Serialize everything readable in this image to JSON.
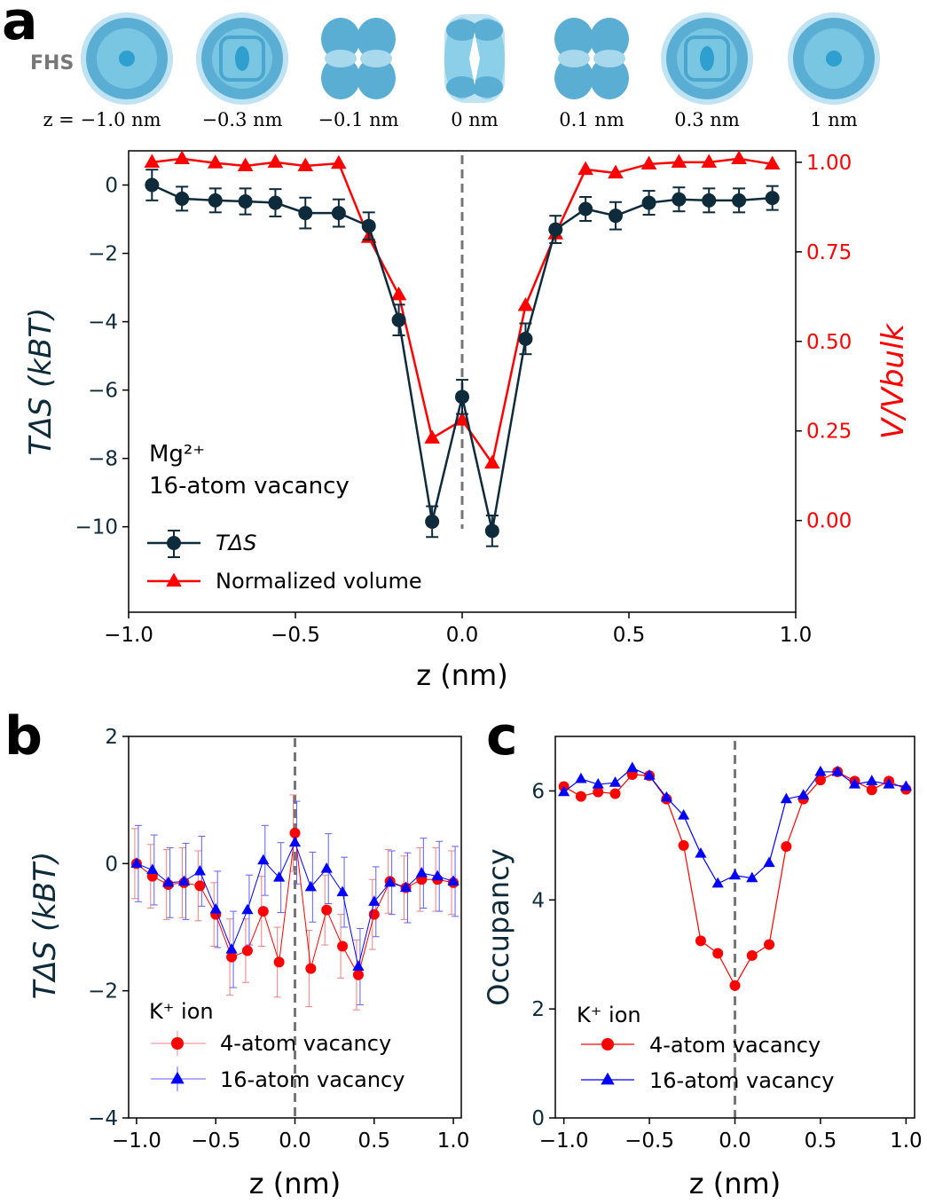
{
  "panel_letters": {
    "a": "a",
    "b": "b",
    "c": "c"
  },
  "fhs_label": "FHS",
  "snapshot_labels": [
    "z = −1.0 nm",
    "−0.3 nm",
    "−0.1 nm",
    "0 nm",
    "0.1 nm",
    "0.3 nm",
    "1 nm"
  ],
  "colors": {
    "dark": "#0d2b3a",
    "red": "#ff0000",
    "blue": "#0000ff",
    "sphere": "#5aaed3"
  },
  "chart_data": [
    {
      "id": "a",
      "type": "line",
      "xlabel": "z (nm)",
      "ylabel": "TΔS (kBT)",
      "ylabel2": "V/Vbulk",
      "xlim": [
        -1.0,
        1.0
      ],
      "ylim": [
        -12.5,
        1.0
      ],
      "ylim2": [
        -0.256,
        1.032
      ],
      "xticks": [
        "−1.0",
        "−0.5",
        "0.0",
        "0.5",
        "1.0"
      ],
      "xtick_values": [
        -1.0,
        -0.5,
        0.0,
        0.5,
        1.0
      ],
      "yticks": [
        "0",
        "−2",
        "−4",
        "−6",
        "−8",
        "−10"
      ],
      "ytick_values": [
        0,
        -2,
        -4,
        -6,
        -8,
        -10
      ],
      "yticks2": [
        "1.00",
        "0.75",
        "0.50",
        "0.25",
        "0.00"
      ],
      "ytick2_values": [
        1.0,
        0.75,
        0.5,
        0.25,
        0.0
      ],
      "annotation": [
        "Mg²⁺",
        "16-atom vacancy"
      ],
      "series": [
        {
          "name": "TΔS",
          "axis": "left",
          "x": [
            -0.93,
            -0.84,
            -0.74,
            -0.65,
            -0.56,
            -0.47,
            -0.37,
            -0.28,
            -0.19,
            -0.09,
            0.0,
            0.09,
            0.19,
            0.28,
            0.37,
            0.46,
            0.56,
            0.65,
            0.74,
            0.83,
            0.93
          ],
          "y": [
            0.0,
            -0.4,
            -0.45,
            -0.48,
            -0.52,
            -0.82,
            -0.82,
            -1.2,
            -3.95,
            -9.85,
            -6.2,
            -10.12,
            -4.5,
            -1.3,
            -0.7,
            -0.9,
            -0.52,
            -0.42,
            -0.45,
            -0.45,
            -0.38
          ],
          "err": [
            0.45,
            0.35,
            0.35,
            0.38,
            0.4,
            0.45,
            0.4,
            0.4,
            0.45,
            0.45,
            0.5,
            0.45,
            0.45,
            0.4,
            0.35,
            0.4,
            0.35,
            0.35,
            0.35,
            0.35,
            0.35
          ]
        },
        {
          "name": "Normalized volume",
          "axis": "right",
          "x": [
            -0.93,
            -0.84,
            -0.74,
            -0.65,
            -0.56,
            -0.47,
            -0.37,
            -0.28,
            -0.19,
            -0.09,
            0.0,
            0.09,
            0.19,
            0.28,
            0.37,
            0.46,
            0.56,
            0.65,
            0.74,
            0.83,
            0.93
          ],
          "y": [
            1.0,
            1.01,
            0.998,
            0.99,
            1.0,
            0.99,
            0.997,
            0.79,
            0.63,
            0.23,
            0.28,
            0.16,
            0.6,
            0.8,
            0.98,
            0.97,
            0.995,
            1.0,
            1.0,
            1.01,
            0.995
          ]
        }
      ]
    },
    {
      "id": "b",
      "type": "line",
      "xlabel": "z (nm)",
      "ylabel": "TΔS (kBT)",
      "xlim": [
        -1.05,
        1.05
      ],
      "ylim": [
        -4.0,
        2.0
      ],
      "xticks": [
        "−1.0",
        "−0.5",
        "0.0",
        "0.5",
        "1.0"
      ],
      "xtick_values": [
        -1.0,
        -0.5,
        0.0,
        0.5,
        1.0
      ],
      "yticks": [
        "2",
        "0",
        "−2",
        "−4"
      ],
      "ytick_values": [
        2,
        0,
        -2,
        -4
      ],
      "legend_title": "K⁺ ion",
      "series": [
        {
          "name": "4-atom vacancy",
          "x": [
            -1.0,
            -0.9,
            -0.8,
            -0.7,
            -0.6,
            -0.5,
            -0.4,
            -0.3,
            -0.2,
            -0.1,
            0.0,
            0.1,
            0.2,
            0.3,
            0.4,
            0.5,
            0.6,
            0.7,
            0.8,
            0.9,
            1.0
          ],
          "y": [
            0.0,
            -0.2,
            -0.33,
            -0.3,
            -0.35,
            -0.8,
            -1.47,
            -1.37,
            -0.75,
            -1.55,
            0.48,
            -1.65,
            -0.73,
            -1.3,
            -1.75,
            -0.8,
            -0.28,
            -0.38,
            -0.25,
            -0.25,
            -0.3
          ],
          "err": [
            0.55,
            0.5,
            0.55,
            0.55,
            0.55,
            0.5,
            0.6,
            0.5,
            0.55,
            0.55,
            0.6,
            0.6,
            0.55,
            0.5,
            0.55,
            0.55,
            0.5,
            0.5,
            0.5,
            0.5,
            0.5
          ]
        },
        {
          "name": "16-atom vacancy",
          "x": [
            -1.0,
            -0.9,
            -0.8,
            -0.7,
            -0.6,
            -0.5,
            -0.4,
            -0.3,
            -0.2,
            -0.1,
            0.0,
            0.1,
            0.2,
            0.3,
            0.4,
            0.5,
            0.6,
            0.7,
            0.8,
            0.9,
            1.0
          ],
          "y": [
            0.0,
            -0.1,
            -0.3,
            -0.28,
            -0.12,
            -0.72,
            -1.35,
            -0.73,
            0.05,
            -0.22,
            0.33,
            -0.37,
            -0.08,
            -0.45,
            -1.62,
            -0.6,
            -0.3,
            -0.38,
            -0.15,
            -0.2,
            -0.28
          ],
          "err": [
            0.6,
            0.55,
            0.55,
            0.6,
            0.55,
            0.6,
            0.6,
            0.55,
            0.55,
            0.55,
            0.65,
            0.55,
            0.55,
            0.55,
            0.6,
            0.55,
            0.5,
            0.55,
            0.55,
            0.55,
            0.55
          ]
        }
      ]
    },
    {
      "id": "c",
      "type": "line",
      "xlabel": "z (nm)",
      "ylabel": "Occupancy",
      "xlim": [
        -1.05,
        1.05
      ],
      "ylim": [
        0.0,
        7.0
      ],
      "xticks": [
        "−1.0",
        "−0.5",
        "0.0",
        "0.5",
        "1.0"
      ],
      "xtick_values": [
        -1.0,
        -0.5,
        0.0,
        0.5,
        1.0
      ],
      "yticks": [
        "0",
        "2",
        "4",
        "6"
      ],
      "ytick_values": [
        0,
        2,
        4,
        6
      ],
      "legend_title": "K⁺ ion",
      "series": [
        {
          "name": "4-atom vacancy",
          "x": [
            -1.0,
            -0.9,
            -0.8,
            -0.7,
            -0.6,
            -0.5,
            -0.4,
            -0.3,
            -0.2,
            -0.1,
            0.0,
            0.1,
            0.2,
            0.3,
            0.4,
            0.5,
            0.6,
            0.7,
            0.8,
            0.9,
            1.0
          ],
          "y": [
            6.08,
            5.9,
            5.98,
            5.95,
            6.3,
            6.28,
            5.85,
            5.0,
            3.25,
            3.02,
            2.43,
            2.98,
            3.18,
            4.98,
            5.85,
            6.2,
            6.35,
            6.18,
            6.02,
            6.18,
            6.03
          ]
        },
        {
          "name": "16-atom vacancy",
          "x": [
            -1.0,
            -0.9,
            -0.8,
            -0.7,
            -0.6,
            -0.5,
            -0.4,
            -0.3,
            -0.2,
            -0.1,
            0.0,
            0.1,
            0.2,
            0.3,
            0.4,
            0.5,
            0.6,
            0.7,
            0.8,
            0.9,
            1.0
          ],
          "y": [
            5.98,
            6.22,
            6.12,
            6.15,
            6.42,
            6.28,
            5.88,
            5.55,
            4.85,
            4.3,
            4.45,
            4.4,
            4.68,
            5.85,
            5.92,
            6.35,
            6.35,
            6.12,
            6.18,
            6.12,
            6.08
          ]
        }
      ]
    }
  ]
}
